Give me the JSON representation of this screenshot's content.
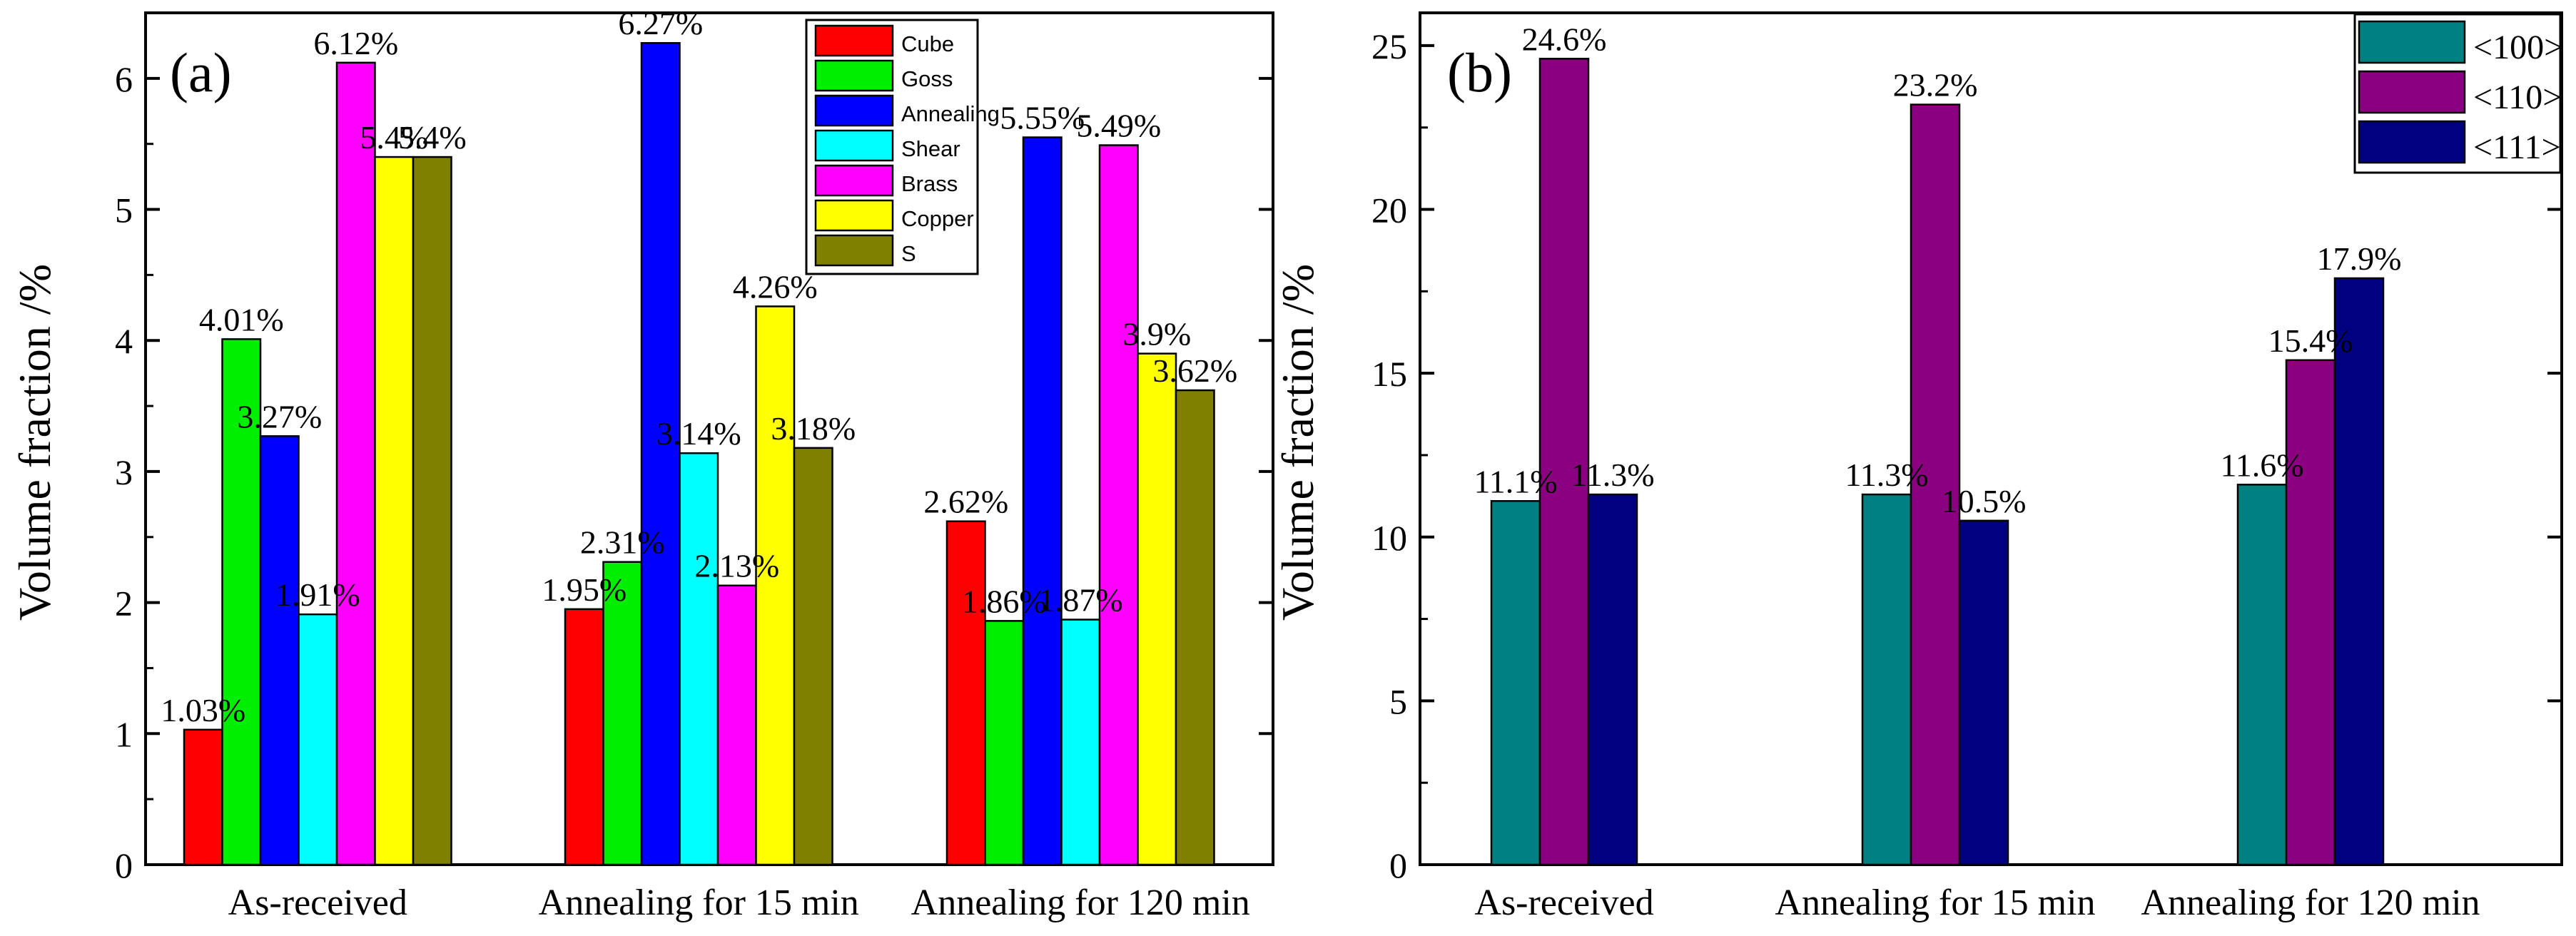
{
  "chart_data": [
    {
      "type": "bar",
      "panel_label": "(a)",
      "title": "",
      "xlabel": "",
      "ylabel": "Volume fraction /%",
      "ylim": [
        0,
        6.5
      ],
      "yticks": [
        "0",
        "1",
        "2",
        "3",
        "4",
        "5",
        "6"
      ],
      "categories": [
        "As-received",
        "Annealing for 15 min",
        "Annealing for 120 min"
      ],
      "legend_position": "top-center",
      "series": [
        {
          "name": "Cube",
          "color": "#ff0000",
          "values": [
            1.03,
            1.95,
            2.62
          ],
          "labels": [
            "1.03%",
            "1.95%",
            "2.62%"
          ]
        },
        {
          "name": "Goss",
          "color": "#00ee00",
          "values": [
            4.01,
            2.31,
            1.86
          ],
          "labels": [
            "4.01%",
            "2.31%",
            "1.86%"
          ]
        },
        {
          "name": "Annealing",
          "color": "#0000ff",
          "values": [
            3.27,
            6.27,
            5.55
          ],
          "labels": [
            "3.27%",
            "6.27%",
            "5.55%"
          ]
        },
        {
          "name": "Shear",
          "color": "#00ffff",
          "values": [
            1.91,
            3.14,
            1.87
          ],
          "labels": [
            "1.91%",
            "3.14%",
            "1.87%"
          ]
        },
        {
          "name": "Brass",
          "color": "#ff00ff",
          "values": [
            6.12,
            2.13,
            5.49
          ],
          "labels": [
            "6.12%",
            "2.13%",
            "5.49%"
          ]
        },
        {
          "name": "Copper",
          "color": "#ffff00",
          "values": [
            5.4,
            4.26,
            3.9
          ],
          "labels": [
            "5.4%",
            "4.26%",
            "3.9%"
          ]
        },
        {
          "name": "S",
          "color": "#808000",
          "values": [
            5.4,
            3.18,
            3.62
          ],
          "labels": [
            "5.4%",
            "3.18%",
            "3.62%"
          ]
        }
      ]
    },
    {
      "type": "bar",
      "panel_label": "(b)",
      "title": "",
      "xlabel": "",
      "ylabel": "Volume fraction /%",
      "ylim": [
        0,
        26
      ],
      "yticks": [
        "0",
        "5",
        "10",
        "15",
        "20",
        "25"
      ],
      "categories": [
        "As-received",
        "Annealing for 15 min",
        "Annealing for 120 min"
      ],
      "legend_position": "top-right",
      "series": [
        {
          "name": "<100>",
          "color": "#008080",
          "values": [
            11.1,
            11.3,
            11.6
          ],
          "labels": [
            "11.1%",
            "11.3%",
            "11.6%"
          ]
        },
        {
          "name": "<110>",
          "color": "#8b0080",
          "values": [
            24.6,
            23.2,
            15.4
          ],
          "labels": [
            "24.6%",
            "23.2%",
            "15.4%"
          ]
        },
        {
          "name": "<111>",
          "color": "#000080",
          "values": [
            11.3,
            10.5,
            17.9
          ],
          "labels": [
            "11.3%",
            "10.5%",
            "17.9%"
          ]
        }
      ]
    }
  ]
}
